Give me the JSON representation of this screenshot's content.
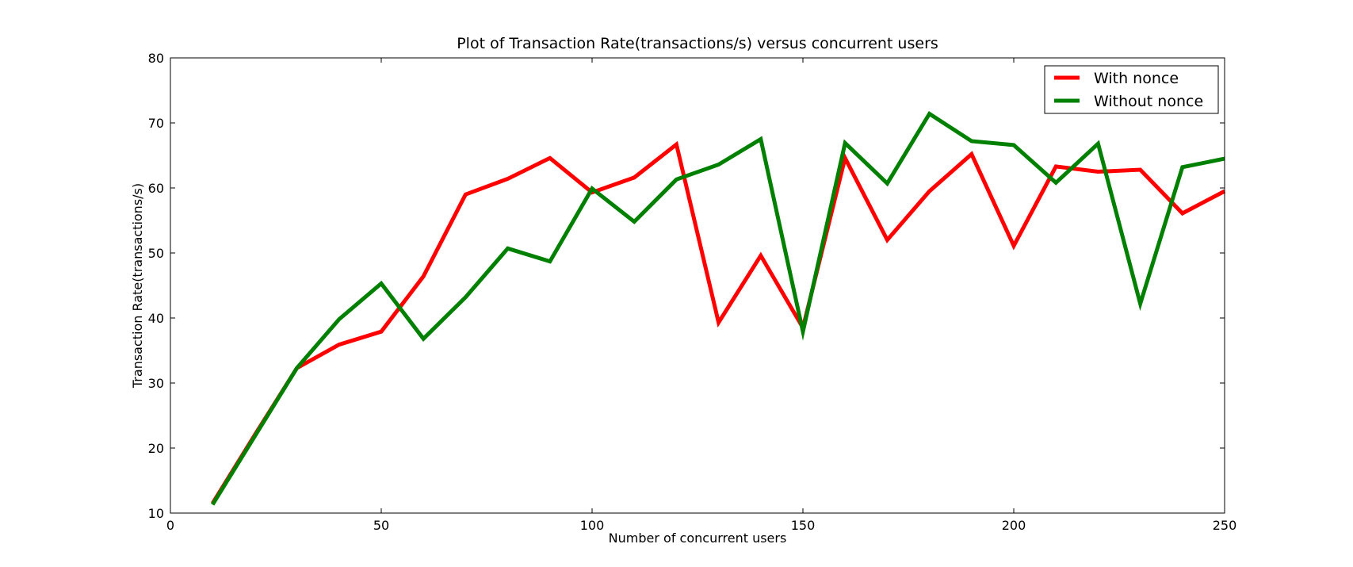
{
  "chart_data": {
    "type": "line",
    "title": "Plot of Transaction Rate(transactions/s) versus concurrent users",
    "xlabel": "Number of concurrent users",
    "ylabel": "Transaction Rate(transactions/s)",
    "xlim": [
      0,
      250
    ],
    "ylim": [
      10,
      80
    ],
    "xticks": [
      0,
      50,
      100,
      150,
      200,
      250
    ],
    "yticks": [
      10,
      20,
      30,
      40,
      50,
      60,
      70,
      80
    ],
    "grid": false,
    "legend_position": "top-right",
    "x": [
      10,
      20,
      30,
      40,
      50,
      60,
      70,
      80,
      90,
      100,
      110,
      120,
      130,
      140,
      150,
      160,
      170,
      180,
      190,
      200,
      210,
      220,
      230,
      240,
      250
    ],
    "series": [
      {
        "name": "With nonce",
        "color": "#ff0000",
        "values": [
          11.5,
          22,
          32.3,
          35.9,
          37.9,
          46.4,
          59,
          61.4,
          64.6,
          59.3,
          61.6,
          66.7,
          39.3,
          49.6,
          38.5,
          64.6,
          52,
          59.5,
          65.2,
          51.1,
          63.3,
          62.5,
          62.8,
          56.1,
          59.5
        ]
      },
      {
        "name": "Without nonce",
        "color": "#008000",
        "values": [
          11.3,
          21.8,
          32.3,
          39.8,
          45.3,
          36.8,
          43.2,
          50.7,
          48.7,
          59.9,
          54.8,
          61.3,
          63.6,
          67.5,
          37.9,
          66.9,
          60.7,
          71.4,
          67.2,
          66.6,
          60.8,
          66.8,
          42.2,
          63.2,
          64.5
        ]
      }
    ]
  }
}
